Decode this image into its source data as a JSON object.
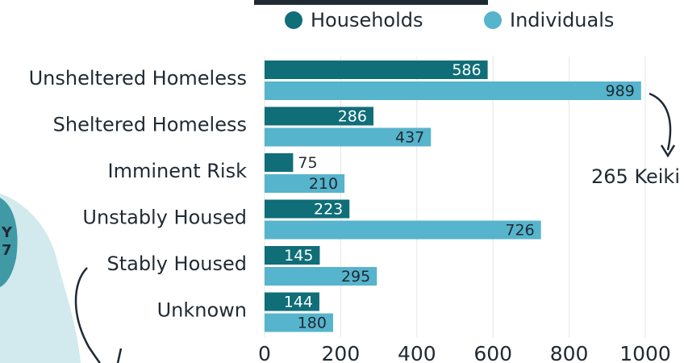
{
  "chart_data": {
    "type": "bar",
    "orientation": "horizontal",
    "categories": [
      "Unsheltered Homeless",
      "Sheltered Homeless",
      "Imminent Risk",
      "Unstably Housed",
      "Stably Housed",
      "Unknown"
    ],
    "series": [
      {
        "name": "Households",
        "values": [
          586,
          286,
          75,
          223,
          145,
          144
        ],
        "color": "#0f6e78"
      },
      {
        "name": "Individuals",
        "values": [
          989,
          437,
          210,
          726,
          295,
          180
        ],
        "color": "#56b4cc"
      }
    ],
    "xlim": [
      0,
      1000
    ],
    "xticks": [
      "0",
      "200",
      "400",
      "600",
      "800",
      "1000"
    ],
    "grid": true,
    "legend": "top",
    "annotation": "265 Keiki"
  }
}
